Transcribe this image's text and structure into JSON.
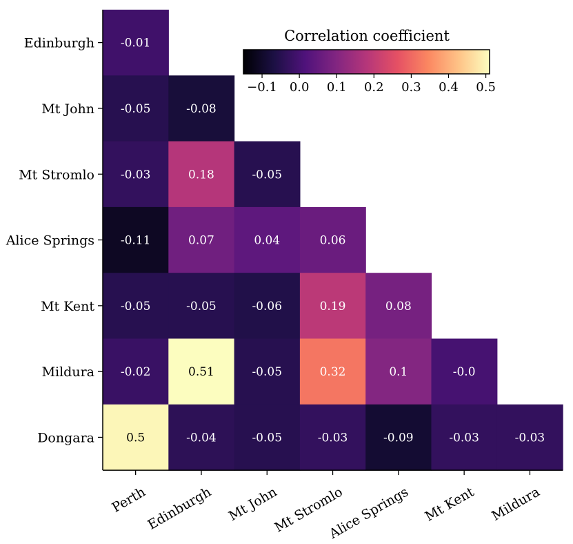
{
  "chart_data": {
    "type": "heatmap",
    "title": "",
    "row_labels": [
      "Edinburgh",
      "Mt John",
      "Mt Stromlo",
      "Alice Springs",
      "Mt Kent",
      "Mildura",
      "Dongara"
    ],
    "col_labels": [
      "Perth",
      "Edinburgh",
      "Mt John",
      "Mt Stromlo",
      "Alice Springs",
      "Mt Kent",
      "Mildura"
    ],
    "values": [
      [
        -0.01
      ],
      [
        -0.05,
        -0.08
      ],
      [
        -0.03,
        0.18,
        -0.05
      ],
      [
        -0.11,
        0.07,
        0.04,
        0.06
      ],
      [
        -0.05,
        -0.05,
        -0.06,
        0.19,
        0.08
      ],
      [
        -0.02,
        0.51,
        -0.05,
        0.32,
        0.1,
        -0.0
      ],
      [
        0.5,
        -0.04,
        -0.05,
        -0.03,
        -0.09,
        -0.03,
        -0.03
      ]
    ],
    "cell_text": [
      [
        "-0.01"
      ],
      [
        "-0.05",
        "-0.08"
      ],
      [
        "-0.03",
        "0.18",
        "-0.05"
      ],
      [
        "-0.11",
        "0.07",
        "0.04",
        "0.06"
      ],
      [
        "-0.05",
        "-0.05",
        "-0.06",
        "0.19",
        "0.08"
      ],
      [
        "-0.02",
        "0.51",
        "-0.05",
        "0.32",
        "0.1",
        "-0.0"
      ],
      [
        "0.5",
        "-0.04",
        "-0.05",
        "-0.03",
        "-0.09",
        "-0.03",
        "-0.03"
      ]
    ],
    "colormap": "magma",
    "vmin": -0.15,
    "vmax": 0.51,
    "colorbar": {
      "title": "Correlation coefficient",
      "ticks": [
        -0.1,
        0.0,
        0.1,
        0.2,
        0.3,
        0.4,
        0.5
      ],
      "tick_labels": [
        "−0.1",
        "0.0",
        "0.1",
        "0.2",
        "0.3",
        "0.4",
        "0.5"
      ],
      "orientation": "horizontal",
      "placement": "top-right"
    }
  }
}
